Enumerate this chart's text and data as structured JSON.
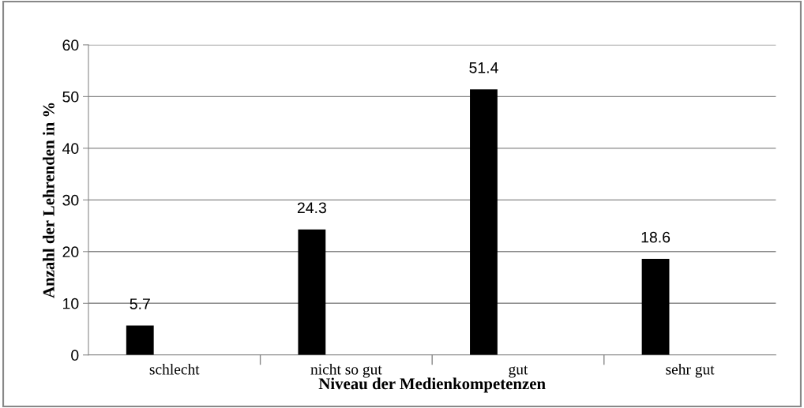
{
  "chart_data": {
    "type": "bar",
    "xlabel": "Niveau der Medienkompetenzen",
    "ylabel": "Anzahl der Lehrenden in %",
    "categories": [
      "schlecht",
      "nicht so gut",
      "gut",
      "sehr gut"
    ],
    "values": [
      5.7,
      24.3,
      51.4,
      18.6
    ],
    "color": "#000000",
    "value_labels": [
      "5.7",
      "24.3",
      "51.4",
      "18.6"
    ],
    "ylim": [
      0,
      60
    ],
    "yticks": [
      0,
      10,
      20,
      30,
      40,
      50,
      60
    ],
    "grid": "y",
    "legend": false
  }
}
